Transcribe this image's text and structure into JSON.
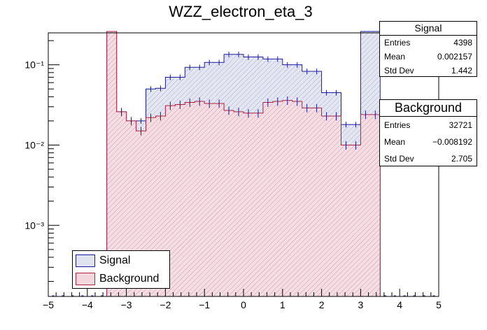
{
  "chart_data": {
    "type": "bar",
    "title": "WZZ_electron_eta_3",
    "x_ticks": [
      "−5",
      "−4",
      "−3",
      "−2",
      "−1",
      "0",
      "1",
      "2",
      "3",
      "4",
      "5"
    ],
    "y_ticks": [
      "10⁻³",
      "10⁻²",
      "10⁻¹"
    ],
    "xlim": [
      -5,
      5
    ],
    "ylim": [
      0.00013,
      0.25
    ],
    "y_scale": "log",
    "bin_width": 0.25,
    "bin_lows": [
      -3.5,
      -3.25,
      -3.0,
      -2.75,
      -2.5,
      -2.25,
      -2.0,
      -1.75,
      -1.5,
      -1.25,
      -1.0,
      -0.75,
      -0.5,
      -0.25,
      0.0,
      0.25,
      0.5,
      0.75,
      1.0,
      1.25,
      1.5,
      1.75,
      2.0,
      2.25,
      2.5,
      2.75,
      3.0,
      3.25
    ],
    "series": [
      {
        "name": "Signal",
        "color": "#1a1aa0",
        "fill": "#dfe3ef",
        "values": [
          0.26,
          0.026,
          0.02,
          0.02,
          0.05,
          0.051,
          0.07,
          0.07,
          0.093,
          0.093,
          0.107,
          0.107,
          0.135,
          0.135,
          0.125,
          0.125,
          0.118,
          0.118,
          0.1,
          0.1,
          0.083,
          0.083,
          0.045,
          0.045,
          0.018,
          0.018,
          0.26,
          0.26
        ]
      },
      {
        "name": "Background",
        "color": "#b02040",
        "fill": "#f3d7df",
        "values": [
          0.26,
          0.026,
          0.02,
          0.015,
          0.022,
          0.023,
          0.031,
          0.032,
          0.034,
          0.035,
          0.033,
          0.033,
          0.027,
          0.026,
          0.025,
          0.025,
          0.034,
          0.035,
          0.036,
          0.035,
          0.029,
          0.029,
          0.023,
          0.023,
          0.01,
          0.01,
          0.024,
          0.024
        ]
      }
    ],
    "legend": {
      "placement": "bottom-left",
      "entries": [
        "Signal",
        "Background"
      ]
    }
  },
  "stats_signal": {
    "title": "Signal",
    "entries_label": "Entries",
    "entries_value": "4398",
    "mean_label": "Mean",
    "mean_value": "0.002157",
    "std_label": "Std Dev",
    "std_value": "1.442"
  },
  "stats_background": {
    "title": "Background",
    "entries_label": "Entries",
    "entries_value": "32721",
    "mean_label": "Mean",
    "mean_value": "−0.008192",
    "std_label": "Std Dev",
    "std_value": "2.705"
  }
}
